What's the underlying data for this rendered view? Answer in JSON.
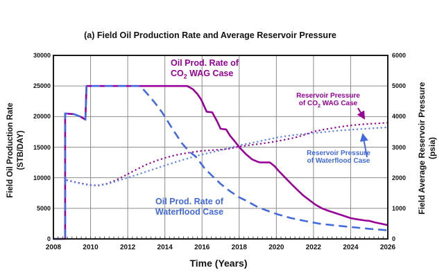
{
  "title": "(a) Field Oil Production Rate and Average Reservoir Pressure",
  "axes": {
    "x_title": "Time (Years)",
    "y_left_title_line1": "Field Oil Production Rate",
    "y_left_title_line2": "(STB/DAY)",
    "y_right_title_line1": "Field Average Reservoir Pressure",
    "y_right_title_line2": "(psia)"
  },
  "colors": {
    "purple": "#990099",
    "blue": "#4169E1",
    "blue_dotted": "#5B82F0",
    "grid": "#8c8c8c",
    "frame": "#1a1a1a"
  },
  "annotations": {
    "co2_rate": {
      "line1": "Oil Prod. Rate of",
      "line2_pre": "CO",
      "line2_sub": "2",
      "line2_post": " WAG Case"
    },
    "waterflood_rate": {
      "line1": "Oil Prod. Rate of",
      "line2": "Waterflood Case"
    },
    "reservoir_co2": {
      "line1": "Reservoir Pressure",
      "line2_pre": "of CO",
      "line2_sub": "2",
      "line2_post": " WAG Case"
    },
    "reservoir_wf": {
      "line1": "Reservoir Pressure",
      "line2": "of Waterflood Case"
    }
  },
  "chart_data": {
    "type": "line",
    "title": "(a) Field Oil Production Rate and Average Reservoir Pressure",
    "xlabel": "Time (Years)",
    "ylabel_left": "Field Oil Production Rate (STB/DAY)",
    "ylabel_right": "Field Average Reservoir Pressure (psia)",
    "x_range": [
      2008,
      2026
    ],
    "y_left_range": [
      0,
      30000
    ],
    "y_right_range": [
      0,
      6000
    ],
    "grid": true,
    "x_ticks": [
      "2008",
      "2010",
      "2012",
      "2014",
      "2016",
      "2018",
      "2020",
      "2022",
      "2024",
      "2026"
    ],
    "y_left_ticks": [
      "30000",
      "25000",
      "20000",
      "15000",
      "10000",
      "5000",
      "0"
    ],
    "y_right_ticks": [
      "6000",
      "5000",
      "4000",
      "3000",
      "2000",
      "1000",
      "0"
    ],
    "series": [
      {
        "id": "co2-wag-oil-rate",
        "name": "Oil Prod. Rate of CO2 WAG Case",
        "axis": "left",
        "units": "STB/DAY",
        "color": "#990099",
        "style": "solid",
        "width": 2.6,
        "data": [
          [
            2008.0,
            0
          ],
          [
            2008.63,
            0
          ],
          [
            2008.63,
            20500
          ],
          [
            2009.1,
            20400
          ],
          [
            2009.45,
            20000
          ],
          [
            2009.72,
            19500
          ],
          [
            2009.78,
            25000
          ],
          [
            2015.2,
            25000
          ],
          [
            2015.5,
            24500
          ],
          [
            2015.75,
            23700
          ],
          [
            2015.95,
            22800
          ],
          [
            2016.1,
            21800
          ],
          [
            2016.25,
            20800
          ],
          [
            2016.55,
            20700
          ],
          [
            2016.8,
            19300
          ],
          [
            2017.0,
            18000
          ],
          [
            2017.3,
            17900
          ],
          [
            2017.5,
            16900
          ],
          [
            2017.8,
            15800
          ],
          [
            2018.0,
            15000
          ],
          [
            2018.35,
            13900
          ],
          [
            2018.7,
            13000
          ],
          [
            2019.0,
            12600
          ],
          [
            2019.15,
            12500
          ],
          [
            2019.65,
            12500
          ],
          [
            2019.9,
            11900
          ],
          [
            2020.1,
            11200
          ],
          [
            2020.45,
            10100
          ],
          [
            2020.8,
            9000
          ],
          [
            2021.1,
            8100
          ],
          [
            2021.45,
            7100
          ],
          [
            2021.8,
            6300
          ],
          [
            2022.1,
            5600
          ],
          [
            2022.45,
            5000
          ],
          [
            2022.8,
            4600
          ],
          [
            2023.2,
            4200
          ],
          [
            2023.6,
            3800
          ],
          [
            2024.0,
            3400
          ],
          [
            2024.35,
            3200
          ],
          [
            2024.8,
            3000
          ],
          [
            2025.0,
            2950
          ],
          [
            2025.3,
            2700
          ],
          [
            2025.7,
            2450
          ],
          [
            2026.0,
            2250
          ]
        ]
      },
      {
        "id": "waterflood-oil-rate",
        "name": "Oil Prod. Rate of Waterflood Case",
        "axis": "left",
        "units": "STB/DAY",
        "color": "#4169E1",
        "style": "dash",
        "width": 2.6,
        "data": [
          [
            2008.0,
            0
          ],
          [
            2008.63,
            0
          ],
          [
            2008.63,
            20500
          ],
          [
            2009.1,
            20400
          ],
          [
            2009.45,
            20000
          ],
          [
            2009.72,
            19500
          ],
          [
            2009.78,
            25000
          ],
          [
            2012.58,
            25000
          ],
          [
            2012.85,
            24400
          ],
          [
            2013.15,
            23400
          ],
          [
            2013.5,
            22100
          ],
          [
            2013.85,
            20700
          ],
          [
            2014.1,
            19500
          ],
          [
            2014.45,
            17800
          ],
          [
            2014.9,
            15700
          ],
          [
            2015.3,
            14300
          ],
          [
            2015.65,
            13500
          ],
          [
            2015.95,
            12300
          ],
          [
            2016.15,
            11500
          ],
          [
            2016.55,
            10300
          ],
          [
            2017.0,
            9000
          ],
          [
            2017.5,
            7800
          ],
          [
            2018.0,
            6800
          ],
          [
            2018.35,
            6300
          ],
          [
            2019.0,
            5200
          ],
          [
            2019.7,
            4400
          ],
          [
            2020.1,
            4000
          ],
          [
            2020.8,
            3400
          ],
          [
            2021.5,
            2950
          ],
          [
            2022.3,
            2500
          ],
          [
            2023.0,
            2250
          ],
          [
            2024.0,
            1950
          ],
          [
            2025.0,
            1650
          ],
          [
            2026.0,
            1400
          ]
        ]
      },
      {
        "id": "co2-wag-pressure",
        "name": "Reservoir Pressure of CO2 WAG Case",
        "axis": "right",
        "units": "psia",
        "color": "#990099",
        "style": "dot",
        "width": 2.2,
        "data": [
          [
            2008.7,
            1930
          ],
          [
            2009.3,
            1840
          ],
          [
            2010.0,
            1760
          ],
          [
            2010.4,
            1750
          ],
          [
            2010.8,
            1790
          ],
          [
            2011.2,
            1880
          ],
          [
            2011.6,
            1990
          ],
          [
            2012.0,
            2120
          ],
          [
            2012.5,
            2280
          ],
          [
            2013.0,
            2430
          ],
          [
            2013.5,
            2550
          ],
          [
            2014.0,
            2650
          ],
          [
            2014.5,
            2730
          ],
          [
            2015.0,
            2790
          ],
          [
            2015.5,
            2840
          ],
          [
            2016.0,
            2880
          ],
          [
            2016.5,
            2900
          ],
          [
            2017.0,
            2920
          ],
          [
            2017.5,
            2950
          ],
          [
            2018.0,
            3020
          ],
          [
            2018.5,
            3060
          ],
          [
            2019.0,
            3100
          ],
          [
            2019.5,
            3140
          ],
          [
            2020.0,
            3190
          ],
          [
            2020.5,
            3250
          ],
          [
            2021.0,
            3310
          ],
          [
            2021.5,
            3400
          ],
          [
            2022.0,
            3510
          ],
          [
            2022.5,
            3570
          ],
          [
            2023.0,
            3620
          ],
          [
            2023.5,
            3670
          ],
          [
            2024.0,
            3710
          ],
          [
            2024.5,
            3740
          ],
          [
            2025.0,
            3760
          ],
          [
            2025.5,
            3780
          ],
          [
            2026.0,
            3800
          ]
        ]
      },
      {
        "id": "waterflood-pressure",
        "name": "Reservoir Pressure of Waterflood Case",
        "axis": "right",
        "units": "psia",
        "color": "#5B82F0",
        "style": "dot",
        "width": 2.2,
        "data": [
          [
            2008.7,
            1920
          ],
          [
            2009.3,
            1830
          ],
          [
            2010.0,
            1750
          ],
          [
            2010.4,
            1740
          ],
          [
            2010.8,
            1780
          ],
          [
            2011.2,
            1850
          ],
          [
            2011.6,
            1930
          ],
          [
            2012.0,
            2000
          ],
          [
            2012.5,
            2100
          ],
          [
            2013.0,
            2200
          ],
          [
            2013.5,
            2300
          ],
          [
            2014.0,
            2400
          ],
          [
            2014.5,
            2500
          ],
          [
            2015.0,
            2590
          ],
          [
            2015.5,
            2680
          ],
          [
            2016.0,
            2760
          ],
          [
            2016.5,
            2830
          ],
          [
            2017.0,
            2900
          ],
          [
            2017.5,
            2980
          ],
          [
            2018.0,
            3060
          ],
          [
            2018.5,
            3120
          ],
          [
            2019.0,
            3180
          ],
          [
            2019.5,
            3250
          ],
          [
            2020.0,
            3310
          ],
          [
            2020.5,
            3360
          ],
          [
            2021.0,
            3400
          ],
          [
            2021.5,
            3430
          ],
          [
            2022.0,
            3460
          ],
          [
            2022.5,
            3490
          ],
          [
            2023.0,
            3520
          ],
          [
            2023.5,
            3550
          ],
          [
            2024.0,
            3570
          ],
          [
            2025.0,
            3610
          ],
          [
            2026.0,
            3650
          ]
        ]
      }
    ]
  }
}
